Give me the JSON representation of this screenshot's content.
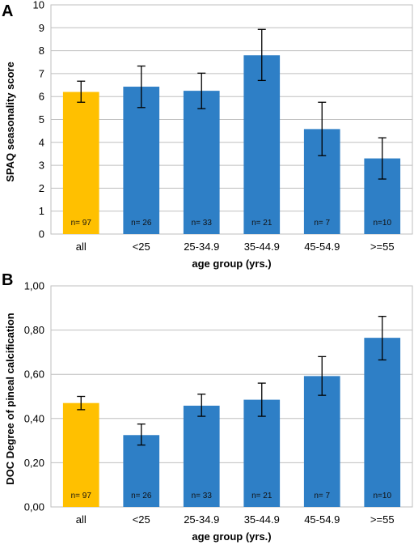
{
  "chart_data": [
    {
      "type": "bar",
      "panel": "A",
      "categories": [
        "all",
        "<25",
        "25-34.9",
        "35-44.9",
        "45-54.9",
        ">=55"
      ],
      "values": [
        6.2,
        6.43,
        6.25,
        7.8,
        4.58,
        3.3
      ],
      "error_low": [
        5.75,
        5.52,
        5.47,
        6.7,
        3.42,
        2.4
      ],
      "error_high": [
        6.67,
        7.33,
        7.02,
        8.93,
        5.75,
        4.2
      ],
      "n_labels": [
        "n= 97",
        "n= 26",
        "n= 33",
        "n= 21",
        "n= 7",
        "n=10"
      ],
      "bar_colors": [
        "#ffc000",
        "#2e7fc6",
        "#2e7fc6",
        "#2e7fc6",
        "#2e7fc6",
        "#2e7fc6"
      ],
      "ylabel": "SPAQ seasonality score",
      "xlabel": "age group (yrs.)",
      "ylim": [
        0,
        10
      ],
      "yticks": [
        0,
        1,
        2,
        3,
        4,
        5,
        6,
        7,
        8,
        9,
        10
      ],
      "ytick_labels": [
        "0",
        "1",
        "2",
        "3",
        "4",
        "5",
        "6",
        "7",
        "8",
        "9",
        "10"
      ],
      "grid": true
    },
    {
      "type": "bar",
      "panel": "B",
      "categories": [
        "all",
        "<25",
        "25-34.9",
        "35-44.9",
        "45-54.9",
        ">=55"
      ],
      "values": [
        0.47,
        0.325,
        0.458,
        0.485,
        0.592,
        0.765
      ],
      "error_low": [
        0.44,
        0.28,
        0.41,
        0.41,
        0.505,
        0.665
      ],
      "error_high": [
        0.5,
        0.375,
        0.51,
        0.56,
        0.68,
        0.862
      ],
      "n_labels": [
        "n= 97",
        "n= 26",
        "n= 33",
        "n= 21",
        "n= 7",
        "n=10"
      ],
      "bar_colors": [
        "#ffc000",
        "#2e7fc6",
        "#2e7fc6",
        "#2e7fc6",
        "#2e7fc6",
        "#2e7fc6"
      ],
      "ylabel": "DOC Degree of pineal calcification",
      "xlabel": "age group (yrs.)",
      "ylim": [
        0,
        1
      ],
      "yticks": [
        0,
        0.2,
        0.4,
        0.6,
        0.8,
        1.0
      ],
      "ytick_labels": [
        "0,00",
        "0,20",
        "0,40",
        "0,60",
        "0,80",
        "1,00"
      ],
      "grid": true
    }
  ]
}
